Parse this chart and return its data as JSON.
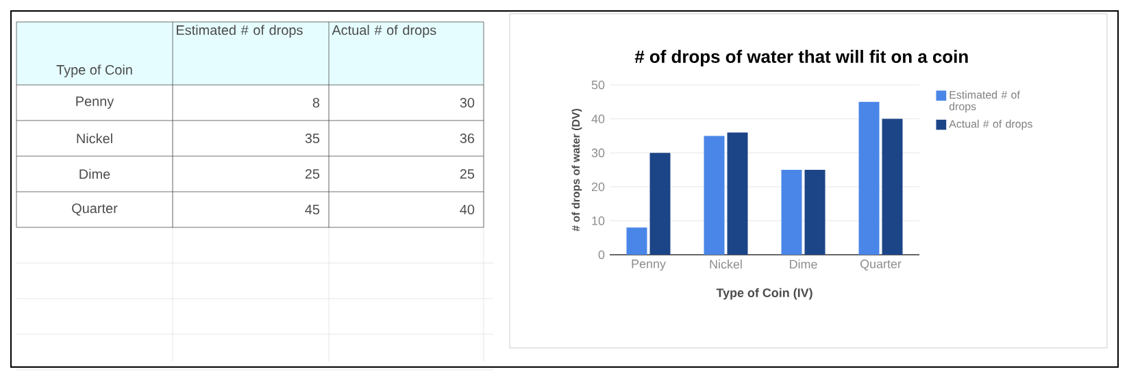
{
  "chart_data": [
    {
      "type": "other",
      "annotations": [
        "Type of Coin",
        "Estimated # of drops",
        "Actual # of drops",
        "Penny",
        "8",
        "30",
        "Nickel",
        "35",
        "36",
        "Dime",
        "25",
        "25",
        "Quarter",
        "45",
        "40"
      ]
    },
    {
      "type": "bar",
      "title": "# of drops of water that will fit on a coin",
      "xlabel": "Type of Coin (IV)",
      "ylabel": "# of drops of water (DV)",
      "categories": [
        "Penny",
        "Nickel",
        "Dime",
        "Quarter"
      ],
      "series": [
        {
          "name": "Estimated # of drops",
          "color": "#4a86e8",
          "values": [
            8,
            35,
            25,
            45
          ]
        },
        {
          "name": "Actual # of drops",
          "color": "#1c4587",
          "values": [
            30,
            36,
            25,
            40
          ]
        }
      ],
      "ylim": [
        0,
        50
      ],
      "yticks": [
        0,
        10,
        20,
        30,
        40,
        50
      ],
      "grid": "y",
      "legend": "right"
    }
  ]
}
